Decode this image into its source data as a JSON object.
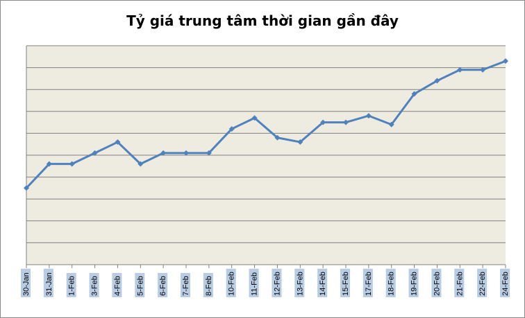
{
  "chart_data": {
    "type": "line",
    "title": "Tỷ giá trung tâm thời gian gần đây",
    "xlabel": "",
    "ylabel": "",
    "categories": [
      "30-Jan",
      "31-Jan",
      "1-Feb",
      "3-Feb",
      "4-Feb",
      "5-Feb",
      "6-Feb",
      "7-Feb",
      "8-Feb",
      "10-Feb",
      "11-Feb",
      "12-Feb",
      "13-Feb",
      "14-Feb",
      "15-Feb",
      "17-Feb",
      "18-Feb",
      "19-Feb",
      "20-Feb",
      "21-Feb",
      "22-Feb",
      "24-Feb"
    ],
    "series": [
      {
        "values": [
          3.5,
          4.6,
          4.6,
          5.1,
          5.6,
          4.6,
          5.1,
          5.1,
          5.1,
          6.2,
          6.7,
          5.8,
          5.6,
          6.5,
          6.5,
          6.8,
          6.4,
          7.8,
          8.4,
          8.9,
          8.9,
          9.3
        ],
        "color": "#4f81bd"
      }
    ],
    "ylim": [
      0,
      10
    ],
    "grid": true,
    "y_tick_labels_visible": false,
    "legend": "none",
    "plot_background": "#eeece1",
    "highlight_tick_labels": [
      "30-Jan",
      "31-Jan",
      "1-Feb",
      "3-Feb",
      "4-Feb",
      "5-Feb",
      "6-Feb",
      "7-Feb",
      "8-Feb",
      "10-Feb",
      "11-Feb",
      "12-Feb",
      "13-Feb",
      "14-Feb",
      "15-Feb",
      "17-Feb",
      "18-Feb",
      "19-Feb",
      "20-Feb",
      "21-Feb",
      "22-Feb",
      "24-Feb"
    ],
    "highlight_color": "#b8cce4"
  }
}
